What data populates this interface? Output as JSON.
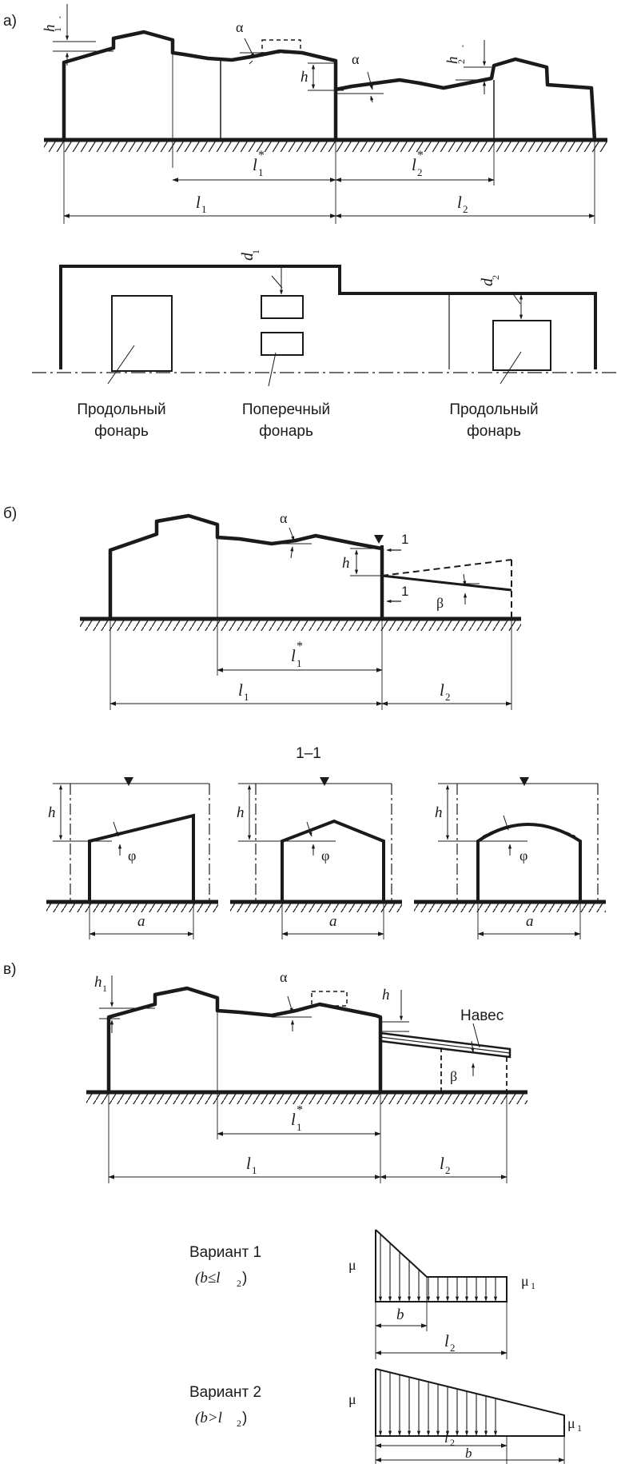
{
  "panels": {
    "a": {
      "label": "а)",
      "h1p": "h",
      "h1p_sub": "1",
      "h1p_prime": "'",
      "alpha": "α",
      "h": "h",
      "h2p": "h",
      "h2p_sub": "2",
      "h2p_prime": "'",
      "l1s": "l",
      "l1s_sub": "1",
      "l2s": "l",
      "l2s_sub": "2",
      "star": "*",
      "l1": "l",
      "l1_sub": "1",
      "l2": "l",
      "l2_sub": "2",
      "d1": "d",
      "d1_sub": "1",
      "d2": "d",
      "d2_sub": "2",
      "label_long_1": "Продольный",
      "label_long_2": "фонарь",
      "label_trans_1": "Поперечный",
      "label_trans_2": "фонарь",
      "label_long_b_1": "Продольный",
      "label_long_b_2": "фонарь"
    },
    "b": {
      "label": "б)",
      "alpha": "α",
      "h": "h",
      "beta": "β",
      "sec_mark": "1",
      "l1s": "l",
      "l1s_sub": "1",
      "star": "*",
      "l1": "l",
      "l1_sub": "1",
      "l2": "l",
      "l2_sub": "2",
      "section_title": "1–1",
      "phi": "φ",
      "a": "a"
    },
    "c": {
      "label": "в)",
      "h1": "h",
      "h1_sub": "1",
      "alpha": "α",
      "h": "h",
      "naves": "Навес",
      "beta": "β",
      "l1s": "l",
      "l1s_sub": "1",
      "star": "*",
      "l1": "l",
      "l1_sub": "1",
      "l2": "l",
      "l2_sub": "2"
    },
    "variants": {
      "v1_title": "Вариант 1",
      "v1_cond": "(b≤l",
      "v1_cond_sub": "2",
      "v1_close": ")",
      "v2_title": "Вариант 2",
      "v2_cond": "(b>l",
      "v2_cond_sub": "2",
      "v2_close": ")",
      "mu": "μ",
      "mu1": "μ",
      "mu1_sub": "1",
      "b": "b",
      "l2": "l",
      "l2_sub": "2"
    }
  }
}
